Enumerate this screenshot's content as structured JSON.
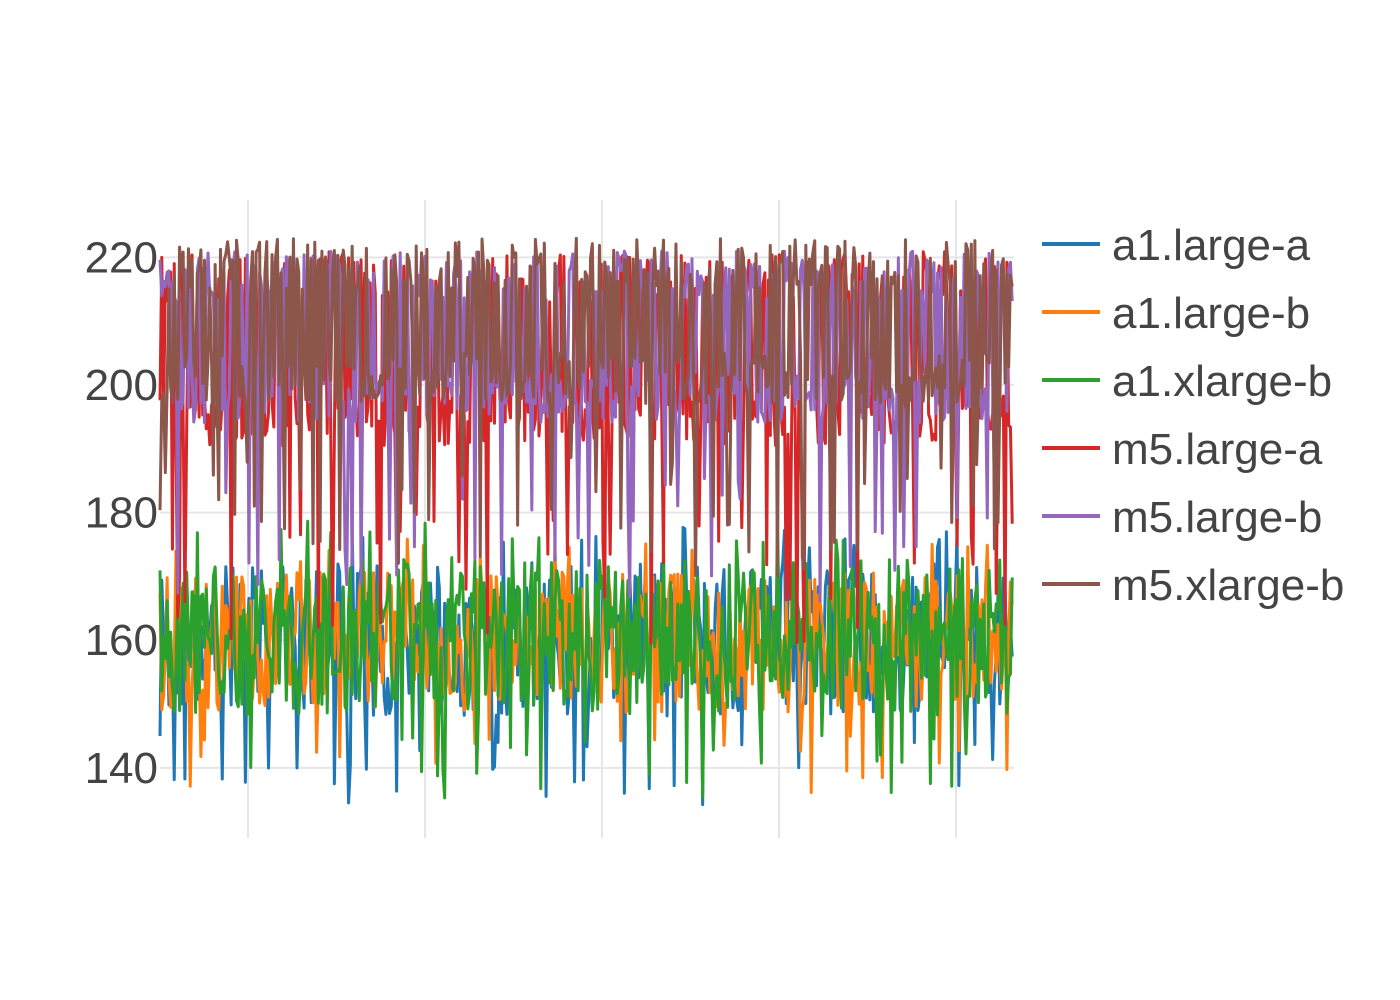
{
  "chart_data": {
    "type": "line",
    "title": "",
    "xlabel": "",
    "ylabel": "",
    "xlim": [
      0,
      480
    ],
    "ylim": [
      129,
      229
    ],
    "yticks": [
      140,
      160,
      180,
      200,
      220
    ],
    "xgrid_count": 5,
    "grid": true,
    "legend_position": "right",
    "n_points": 480,
    "series": [
      {
        "name": "a1.large-a",
        "color": "#1f77b4",
        "low": 134,
        "high": 178,
        "mode": "jitter"
      },
      {
        "name": "a1.large-b",
        "color": "#ff7f0e",
        "low": 136,
        "high": 176,
        "mode": "jitter"
      },
      {
        "name": "a1.xlarge-b",
        "color": "#2ca02c",
        "low": 134,
        "high": 179,
        "mode": "jitter"
      },
      {
        "name": "m5.large-a",
        "color": "#d62728",
        "low": 159,
        "high": 222,
        "mode": "bimodal"
      },
      {
        "name": "m5.large-b",
        "color": "#9467bd",
        "low": 166,
        "high": 222,
        "mode": "bimodal"
      },
      {
        "name": "m5.xlarge-b",
        "color": "#8c564b",
        "low": 170,
        "high": 224,
        "mode": "bimodal"
      }
    ]
  }
}
